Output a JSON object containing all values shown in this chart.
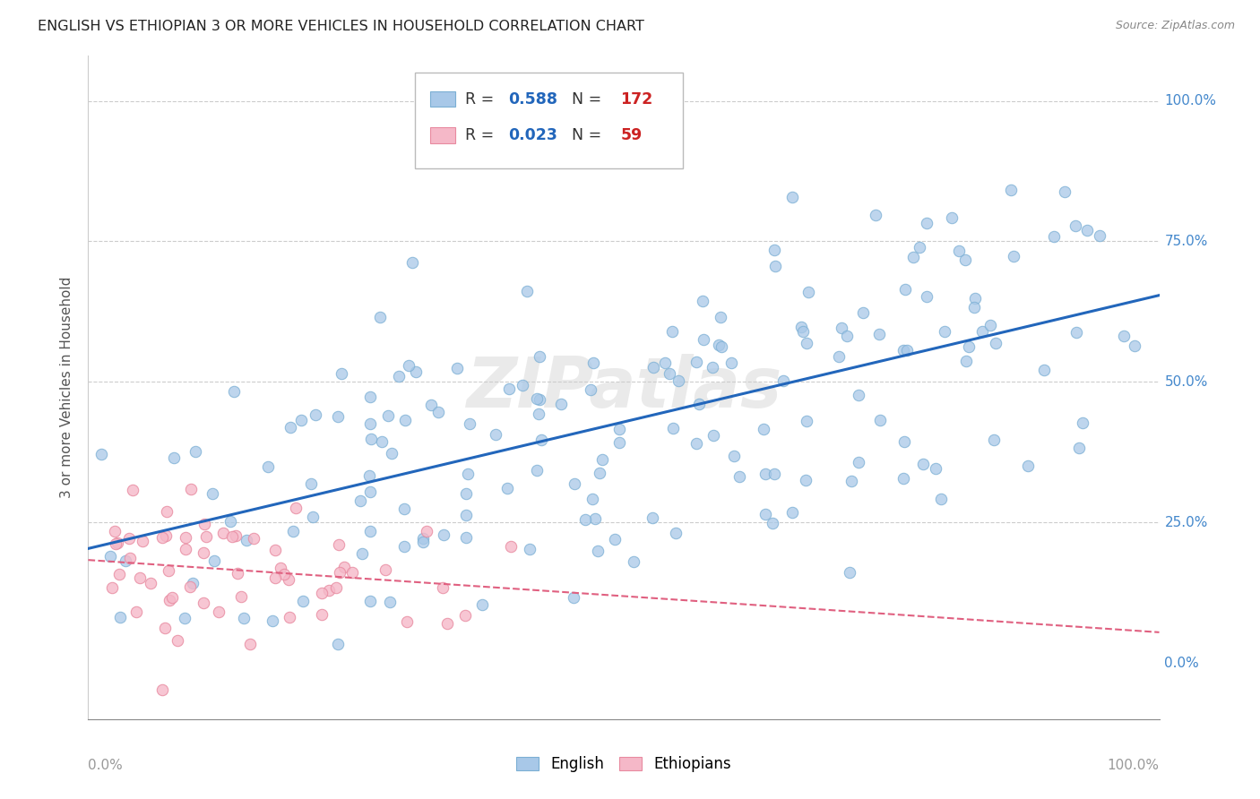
{
  "title": "ENGLISH VS ETHIOPIAN 3 OR MORE VEHICLES IN HOUSEHOLD CORRELATION CHART",
  "source": "Source: ZipAtlas.com",
  "ylabel": "3 or more Vehicles in Household",
  "english_R": 0.588,
  "english_N": 172,
  "ethiopian_R": 0.023,
  "ethiopian_N": 59,
  "english_color": "#a8c8e8",
  "english_edge_color": "#7bafd4",
  "english_line_color": "#2266bb",
  "ethiopian_color": "#f5b8c8",
  "ethiopian_edge_color": "#e88aa0",
  "ethiopian_line_color": "#e06080",
  "watermark": "ZIPatlas",
  "ytick_labels": [
    "0.0%",
    "25.0%",
    "50.0%",
    "75.0%",
    "100.0%"
  ],
  "ytick_values": [
    0,
    25,
    50,
    75,
    100
  ],
  "ytick_color": "#4488cc",
  "xtick_color": "#999999",
  "xlim": [
    -1,
    102
  ],
  "ylim": [
    -10,
    108
  ]
}
